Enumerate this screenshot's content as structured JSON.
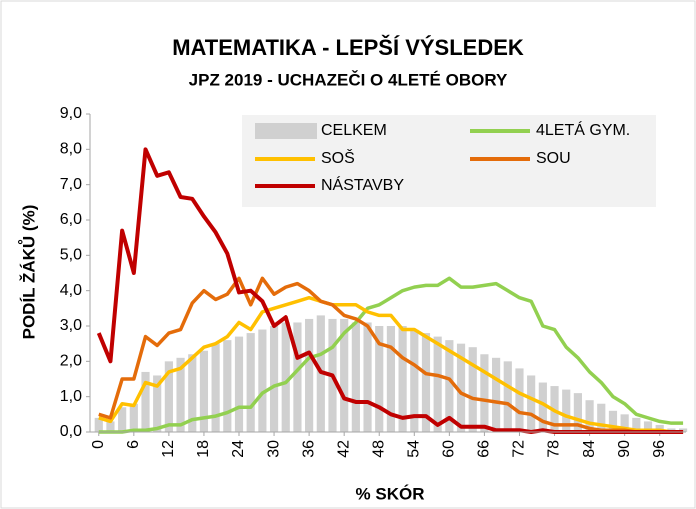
{
  "chart_data": {
    "type": "combo",
    "title": "MATEMATIKA - LEPŠÍ VÝSLEDEK",
    "subtitle": "JPZ 2019 - UCHAZEČI O 4LETÉ OBORY",
    "x_label": "% SKÓR",
    "y_label": "PODÍL ŽÁKŮ (%)",
    "x": [
      0,
      2,
      4,
      6,
      8,
      10,
      12,
      14,
      16,
      18,
      20,
      22,
      24,
      26,
      28,
      30,
      32,
      34,
      36,
      38,
      40,
      42,
      44,
      46,
      48,
      50,
      52,
      54,
      56,
      58,
      60,
      62,
      64,
      66,
      68,
      70,
      72,
      74,
      76,
      78,
      80,
      82,
      84,
      86,
      88,
      90,
      92,
      94,
      96,
      98,
      100
    ],
    "xlim": [
      -1.5,
      100.5
    ],
    "xticks": [
      0,
      6,
      12,
      18,
      24,
      30,
      36,
      42,
      48,
      54,
      60,
      66,
      72,
      78,
      84,
      90,
      96
    ],
    "ylim": [
      0,
      9
    ],
    "yticks": [
      {
        "value": 0,
        "label": "0,0"
      },
      {
        "value": 1,
        "label": "1,0"
      },
      {
        "value": 2,
        "label": "2,0"
      },
      {
        "value": 3,
        "label": "3,0"
      },
      {
        "value": 4,
        "label": "4,0"
      },
      {
        "value": 5,
        "label": "5,0"
      },
      {
        "value": 6,
        "label": "6,0"
      },
      {
        "value": 7,
        "label": "7,0"
      },
      {
        "value": 8,
        "label": "8,0"
      },
      {
        "value": 9,
        "label": "9,0"
      }
    ],
    "series": [
      {
        "name": "CELKEM",
        "type": "bar",
        "color": "#d0d0d0",
        "values": [
          0.4,
          0.3,
          0.7,
          0.8,
          1.7,
          1.6,
          2.0,
          2.1,
          2.2,
          2.3,
          2.5,
          2.6,
          2.7,
          2.8,
          2.9,
          3.0,
          3.1,
          3.1,
          3.2,
          3.3,
          3.2,
          3.2,
          3.1,
          3.1,
          3.0,
          3.0,
          3.0,
          2.9,
          2.8,
          2.7,
          2.6,
          2.5,
          2.4,
          2.2,
          2.1,
          2.0,
          1.8,
          1.6,
          1.4,
          1.3,
          1.2,
          1.1,
          0.9,
          0.8,
          0.6,
          0.5,
          0.4,
          0.3,
          0.2,
          0.1,
          0.1
        ]
      },
      {
        "name": "4LETÁ GYM.",
        "type": "line",
        "color": "#92d050",
        "values": [
          0,
          0,
          0,
          0.05,
          0.05,
          0.1,
          0.2,
          0.2,
          0.35,
          0.4,
          0.45,
          0.55,
          0.7,
          0.7,
          1.1,
          1.3,
          1.4,
          1.75,
          2.1,
          2.2,
          2.4,
          2.8,
          3.1,
          3.5,
          3.6,
          3.8,
          4.0,
          4.1,
          4.15,
          4.15,
          4.35,
          4.1,
          4.1,
          4.15,
          4.2,
          4.0,
          3.8,
          3.7,
          3.0,
          2.9,
          2.4,
          2.1,
          1.7,
          1.4,
          1.0,
          0.8,
          0.5,
          0.4,
          0.3,
          0.25,
          0.25
        ]
      },
      {
        "name": "SOŠ",
        "type": "line",
        "color": "#ffc000",
        "values": [
          0.4,
          0.3,
          0.8,
          0.75,
          1.4,
          1.3,
          1.7,
          1.8,
          2.1,
          2.4,
          2.5,
          2.7,
          3.1,
          2.9,
          3.4,
          3.5,
          3.6,
          3.7,
          3.8,
          3.7,
          3.6,
          3.6,
          3.6,
          3.4,
          3.3,
          3.3,
          2.9,
          2.9,
          2.7,
          2.5,
          2.3,
          2.1,
          1.9,
          1.7,
          1.5,
          1.3,
          1.1,
          0.95,
          0.8,
          0.6,
          0.45,
          0.35,
          0.25,
          0.2,
          0.15,
          0.1,
          0.05,
          0.05,
          0.05,
          0,
          0
        ]
      },
      {
        "name": "SOU",
        "type": "line",
        "color": "#e46c0a",
        "values": [
          0.5,
          0.4,
          1.5,
          1.5,
          2.7,
          2.45,
          2.8,
          2.9,
          3.65,
          4.0,
          3.75,
          3.9,
          4.35,
          3.6,
          4.35,
          3.9,
          4.1,
          4.2,
          4.0,
          3.7,
          3.6,
          3.3,
          3.2,
          3.0,
          2.5,
          2.4,
          2.1,
          1.9,
          1.65,
          1.6,
          1.5,
          1.1,
          0.95,
          0.9,
          0.85,
          0.8,
          0.55,
          0.5,
          0.3,
          0.2,
          0.2,
          0.2,
          0.1,
          0.05,
          0.05,
          0.05,
          0,
          0,
          0,
          0,
          0
        ]
      },
      {
        "name": "NÁSTAVBY",
        "type": "line",
        "color": "#c00000",
        "values": [
          2.8,
          2.0,
          5.7,
          4.5,
          8.0,
          7.25,
          7.35,
          6.65,
          6.6,
          6.1,
          5.65,
          5.05,
          3.95,
          4.0,
          3.7,
          3.0,
          3.25,
          2.1,
          2.25,
          1.7,
          1.6,
          0.95,
          0.85,
          0.85,
          0.7,
          0.5,
          0.4,
          0.45,
          0.45,
          0.2,
          0.4,
          0.15,
          0.15,
          0.15,
          0.05,
          0.05,
          0.05,
          0,
          0.05,
          0,
          0,
          0,
          0,
          0,
          0,
          0,
          0,
          0,
          0,
          0,
          0
        ]
      }
    ]
  }
}
